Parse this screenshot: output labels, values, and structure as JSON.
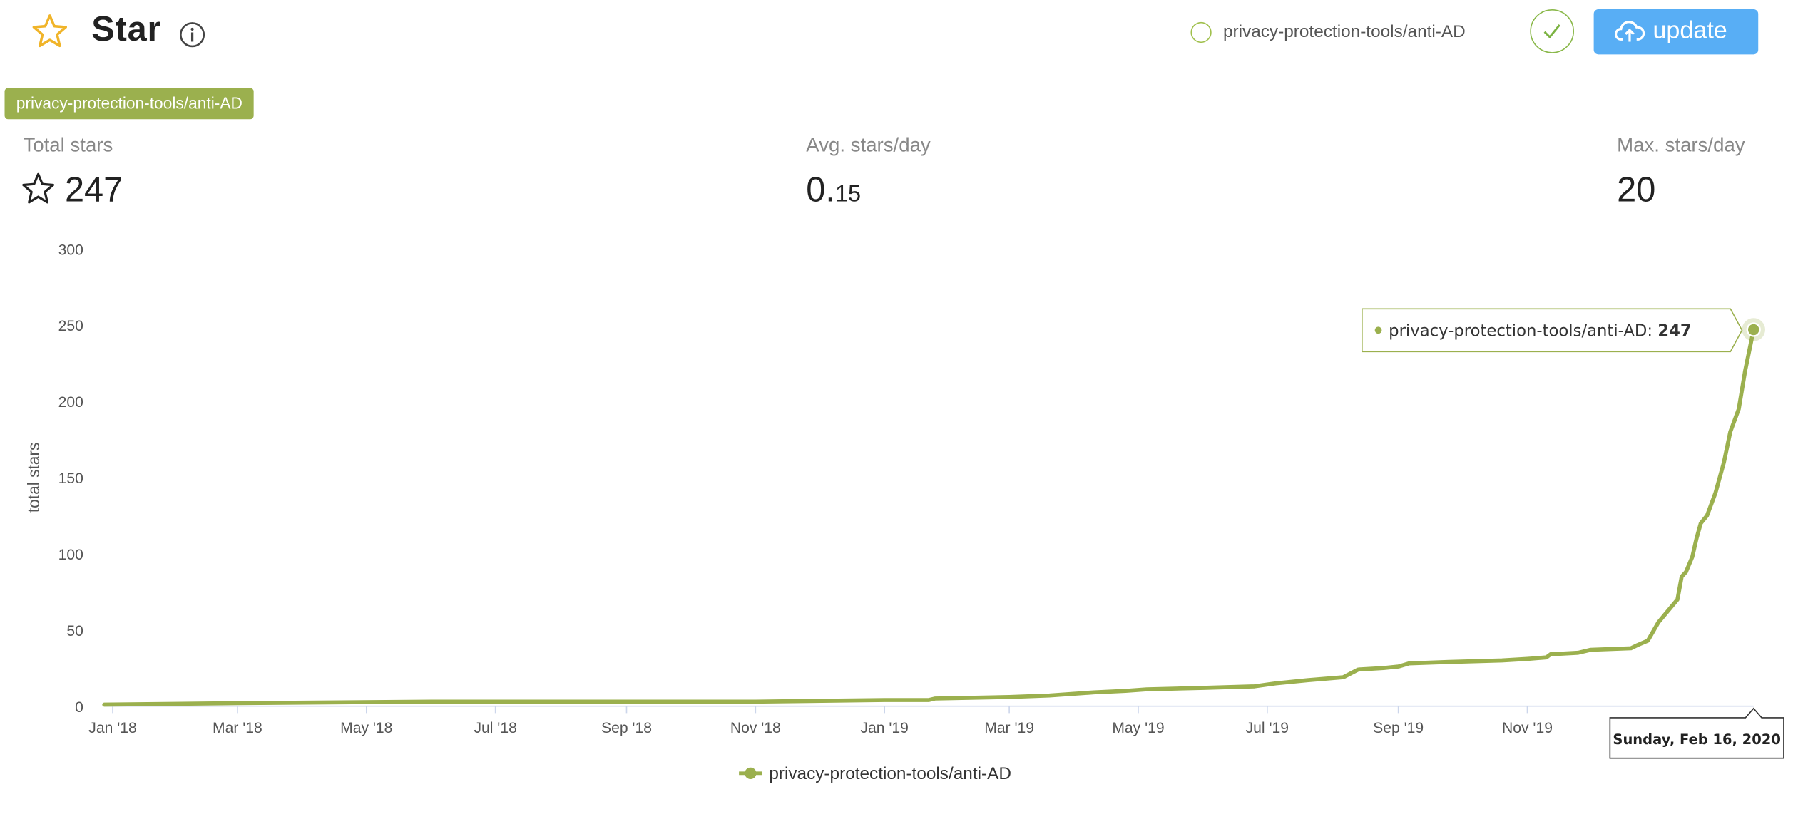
{
  "header": {
    "title": "Star",
    "star_icon": "star-outline-icon",
    "info_icon": "info-icon",
    "repo_option": "privacy-protection-tools/anti-AD",
    "update_label": "update",
    "accent_color": "#9bb04e",
    "button_color": "#58aef5"
  },
  "repo_tag": "privacy-protection-tools/anti-AD",
  "stats": {
    "total": {
      "label": "Total stars",
      "value": "247"
    },
    "avg": {
      "label": "Avg. stars/day",
      "value_int": "0.",
      "value_dec": "15"
    },
    "max": {
      "label": "Max. stars/day",
      "value": "20"
    }
  },
  "chart_data": {
    "type": "line",
    "ylabel": "total stars",
    "ylim": [
      0,
      300
    ],
    "yticks": [
      "0",
      "50",
      "100",
      "150",
      "200",
      "250",
      "300"
    ],
    "xlim": [
      "2017-12-28",
      "2020-02-16"
    ],
    "xticks": [
      {
        "date": "2018-01-01",
        "label": "Jan '18"
      },
      {
        "date": "2018-03-01",
        "label": "Mar '18"
      },
      {
        "date": "2018-05-01",
        "label": "May '18"
      },
      {
        "date": "2018-07-01",
        "label": "Jul '18"
      },
      {
        "date": "2018-09-01",
        "label": "Sep '18"
      },
      {
        "date": "2018-11-01",
        "label": "Nov '18"
      },
      {
        "date": "2019-01-01",
        "label": "Jan '19"
      },
      {
        "date": "2019-03-01",
        "label": "Mar '19"
      },
      {
        "date": "2019-05-01",
        "label": "May '19"
      },
      {
        "date": "2019-07-01",
        "label": "Jul '19"
      },
      {
        "date": "2019-09-01",
        "label": "Sep '19"
      },
      {
        "date": "2019-11-01",
        "label": "Nov '19"
      }
    ],
    "series": [
      {
        "name": "privacy-protection-tools/anti-AD",
        "color": "#9bb04e",
        "points": [
          [
            "2017-12-28",
            1
          ],
          [
            "2018-03-01",
            2
          ],
          [
            "2018-06-01",
            3
          ],
          [
            "2018-09-01",
            3
          ],
          [
            "2018-11-01",
            3
          ],
          [
            "2019-01-01",
            4
          ],
          [
            "2019-01-22",
            4
          ],
          [
            "2019-01-25",
            5
          ],
          [
            "2019-03-01",
            6
          ],
          [
            "2019-03-20",
            7
          ],
          [
            "2019-04-10",
            9
          ],
          [
            "2019-04-25",
            10
          ],
          [
            "2019-05-05",
            11
          ],
          [
            "2019-06-01",
            12
          ],
          [
            "2019-06-25",
            13
          ],
          [
            "2019-07-05",
            15
          ],
          [
            "2019-07-20",
            17
          ],
          [
            "2019-08-06",
            19
          ],
          [
            "2019-08-13",
            24
          ],
          [
            "2019-08-25",
            25
          ],
          [
            "2019-09-01",
            26
          ],
          [
            "2019-09-06",
            28
          ],
          [
            "2019-09-25",
            29
          ],
          [
            "2019-10-20",
            30
          ],
          [
            "2019-11-01",
            31
          ],
          [
            "2019-11-10",
            32
          ],
          [
            "2019-11-12",
            34
          ],
          [
            "2019-11-25",
            35
          ],
          [
            "2019-12-01",
            37
          ],
          [
            "2019-12-20",
            38
          ],
          [
            "2019-12-23",
            40
          ],
          [
            "2019-12-28",
            43
          ],
          [
            "2020-01-02",
            55
          ],
          [
            "2020-01-08",
            65
          ],
          [
            "2020-01-11",
            70
          ],
          [
            "2020-01-13",
            85
          ],
          [
            "2020-01-15",
            88
          ],
          [
            "2020-01-18",
            98
          ],
          [
            "2020-01-20",
            110
          ],
          [
            "2020-01-22",
            120
          ],
          [
            "2020-01-25",
            125
          ],
          [
            "2020-01-29",
            140
          ],
          [
            "2020-02-02",
            160
          ],
          [
            "2020-02-05",
            180
          ],
          [
            "2020-02-09",
            195
          ],
          [
            "2020-02-12",
            220
          ],
          [
            "2020-02-16",
            247
          ]
        ]
      }
    ],
    "tooltip": {
      "series": "privacy-protection-tools/anti-AD",
      "value": "247",
      "date_label": "Sunday, Feb 16, 2020"
    },
    "legend": "privacy-protection-tools/anti-AD",
    "grid": false
  }
}
